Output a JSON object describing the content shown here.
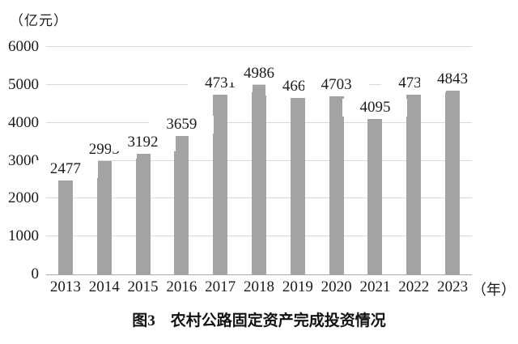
{
  "caption": "图3　农村公路固定资产完成投资情况",
  "chart_data": {
    "type": "bar",
    "title": "图3 农村公路固定资产完成投资情况",
    "unit_label": "（亿元）",
    "x_suffix": "（年）",
    "xlabel": "年",
    "ylabel": "亿元",
    "categories": [
      "2013",
      "2014",
      "2015",
      "2016",
      "2017",
      "2018",
      "2019",
      "2020",
      "2021",
      "2022",
      "2023"
    ],
    "values": [
      2477,
      2995,
      3192,
      3659,
      4731,
      4986,
      4663,
      4703,
      4095,
      4733,
      4843
    ],
    "yticks": [
      0,
      1000,
      2000,
      3000,
      4000,
      5000,
      6000
    ],
    "ylim": [
      0,
      6000
    ],
    "grid": true,
    "legend": "none",
    "bar_color": "#a3a3a3",
    "gridline_color": "#d9d9d9",
    "axis_color": "#a9a9a9",
    "text_color": "#1b1b1b"
  }
}
